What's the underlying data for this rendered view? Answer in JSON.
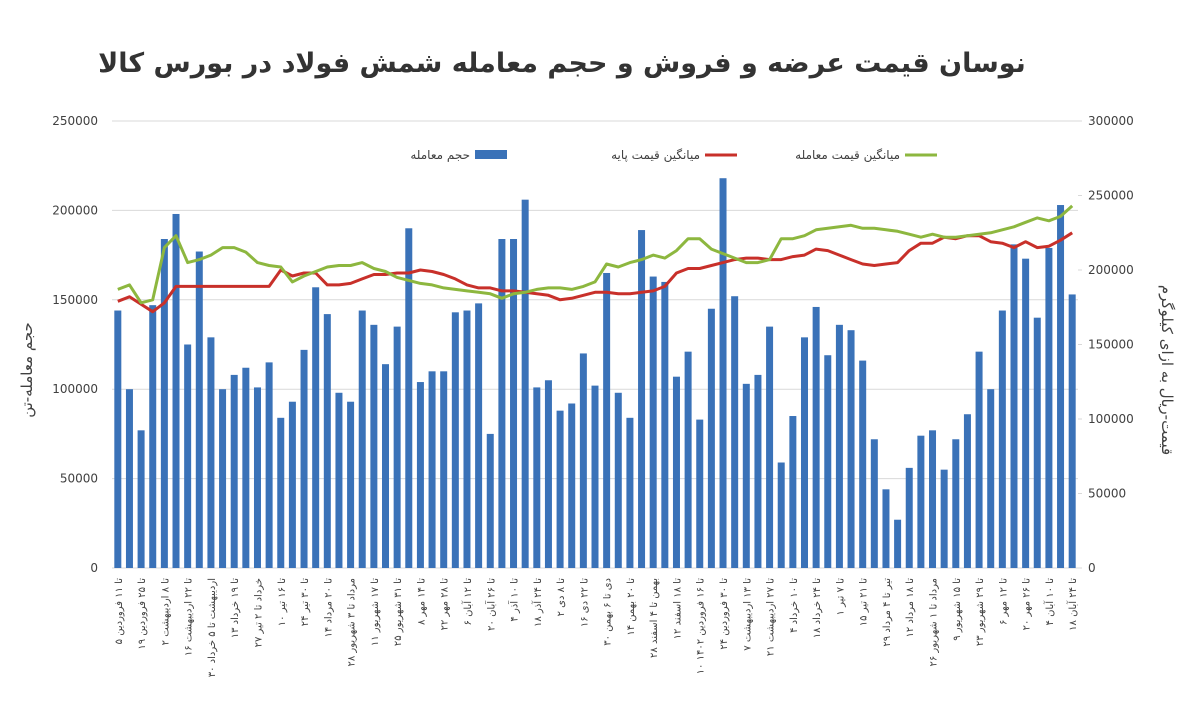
{
  "chart_data": {
    "type": "bar_line",
    "title": "نوسان قیمت عرضه و فروش و حجم معامله شمش فولاد در بورس کالا",
    "y_label": "حجم معامله-تن",
    "y2_label": "قیمت-ریال به ازای کیلوگرم",
    "categories": [
      "۵ تا ۱۱ فروردین",
      null,
      "۱۹ تا ۲۵ فروردین",
      null,
      "۲ تا ۸ اردیبهشت",
      null,
      "۱۶ تا ۲۲ اردیبهشت",
      null,
      "۳۰ اردیبهشت تا ۵ خرداد",
      null,
      "۱۳ تا ۱۹ خرداد",
      null,
      "۲۷ خرداد تا ۲ تیر",
      null,
      "۱۰ تا ۱۶ تیر",
      null,
      "۲۴ تا ۳۰ تیر",
      null,
      "۱۴ تا ۲۰ مرداد",
      null,
      "۲۸ مرداد تا ۳ شهریور",
      null,
      "۱۱ تا ۱۷ شهریور",
      null,
      "۲۵ تا ۳۱ شهریور",
      null,
      "۸ تا ۱۴ مهر",
      null,
      "۲۲ تا ۲۸ مهر",
      null,
      "۶ تا ۱۲ آبان",
      null,
      "۲۰ تا ۲۶ آبان",
      null,
      "۴ تا ۱۰ آذر",
      null,
      "۱۸ تا ۲۴ آذر",
      null,
      "۲ تا ۸ دی",
      null,
      "۱۶ تا ۲۲ دی",
      null,
      "۳۰ دی تا ۶ بهمن",
      null,
      "۱۴ تا ۲۰ بهمن",
      null,
      "۲۸ بهمن تا ۴ اسفند",
      null,
      "۱۲ تا ۱۸ اسفند",
      null,
      "۱۰ تا ۱۶ فروردین ۱۴۰۲",
      null,
      "۲۴ تا ۳۰ فروردین",
      null,
      "۷ تا ۱۳ اردیبهشت",
      null,
      "۲۱ تا ۲۷ اردیبهشت",
      null,
      "۴ تا ۱۰ خرداد",
      null,
      "۱۸ تا ۲۴ خرداد",
      null,
      "۱ تا ۷ تیر",
      null,
      "۱۵ تا ۲۱ تیر",
      null,
      "۲۹ تیر تا ۴ مرداد",
      null,
      "۱۲ تا ۱۸ مرداد",
      null,
      "۲۶ مرداد تا ۱ شهریور",
      null,
      "۹ تا ۱۵ شهریور",
      null,
      "۲۳ تا ۲۹ شهریور",
      null,
      "۶ تا ۱۲ مهر",
      null,
      "۲۰ تا ۲۶ مهر",
      null,
      "۴ تا ۱۰ آبان",
      null,
      "۱۸ تا ۲۴ آبان"
    ],
    "series": [
      {
        "name": "حجم معامله",
        "type": "bar",
        "color": "#3a72b8",
        "values": [
          144000,
          100000,
          77000,
          147000,
          184000,
          198000,
          125000,
          177000,
          129000,
          100000,
          108000,
          112000,
          101000,
          115000,
          84000,
          93000,
          122000,
          157000,
          142000,
          98000,
          93000,
          144000,
          136000,
          114000,
          135000,
          190000,
          104000,
          110000,
          110000,
          143000,
          144000,
          148000,
          75000,
          184000,
          184000,
          206000,
          101000,
          105000,
          88000,
          92000,
          120000,
          102000,
          165000,
          98000,
          84000,
          189000,
          163000,
          160000,
          107000,
          121000,
          83000,
          145000,
          218000,
          152000,
          103000,
          108000,
          135000,
          59000,
          85000,
          129000,
          146000,
          119000,
          136000,
          133000,
          116000,
          72000,
          44000,
          27000,
          56000,
          74000,
          77000,
          55000,
          72000,
          86000,
          121000,
          100000,
          144000,
          181000,
          173000,
          140000,
          179000,
          203000,
          153000
        ]
      },
      {
        "name": "میانگین قیمت پایه",
        "type": "line",
        "axis": "y2",
        "color": "#c8302a",
        "values": [
          179000,
          182000,
          177000,
          172000,
          178000,
          189000,
          189000,
          189000,
          189000,
          189000,
          189000,
          189000,
          189000,
          189000,
          200000,
          196000,
          198000,
          198000,
          190000,
          190000,
          191000,
          194000,
          197000,
          197000,
          198000,
          198000,
          200000,
          199000,
          197000,
          194000,
          190000,
          188000,
          188000,
          186000,
          186000,
          185000,
          184000,
          183000,
          180000,
          181000,
          183000,
          185000,
          185000,
          184000,
          184000,
          185000,
          186000,
          189000,
          198000,
          201000,
          201000,
          203000,
          205000,
          207000,
          208000,
          208000,
          207000,
          207000,
          209000,
          210000,
          214000,
          213000,
          210000,
          207000,
          204000,
          203000,
          204000,
          205000,
          213000,
          218000,
          218000,
          222000,
          221000,
          223000,
          223000,
          219000,
          218000,
          215000,
          219000,
          215000,
          216000,
          220000,
          225000
        ]
      },
      {
        "name": "میانگین قیمت معامله",
        "type": "line",
        "axis": "y2",
        "color": "#8db73f",
        "values": [
          187000,
          190000,
          178000,
          180000,
          215000,
          223000,
          205000,
          207000,
          210000,
          215000,
          215000,
          212000,
          205000,
          203000,
          202000,
          192000,
          196000,
          199000,
          202000,
          203000,
          203000,
          205000,
          201000,
          199000,
          195000,
          193000,
          191000,
          190000,
          188000,
          187000,
          186000,
          185000,
          184000,
          181000,
          184000,
          185000,
          187000,
          188000,
          188000,
          187000,
          189000,
          192000,
          204000,
          202000,
          205000,
          207000,
          210000,
          208000,
          213000,
          221000,
          221000,
          214000,
          211000,
          208000,
          205000,
          205000,
          207000,
          221000,
          221000,
          223000,
          227000,
          228000,
          229000,
          230000,
          228000,
          228000,
          227000,
          226000,
          224000,
          222000,
          224000,
          222000,
          222000,
          223000,
          224000,
          225000,
          227000,
          229000,
          232000,
          235000,
          233000,
          236000,
          243000
        ]
      }
    ],
    "ylim": [
      0,
      250000
    ],
    "yticks": [
      0,
      50000,
      100000,
      150000,
      200000,
      250000
    ],
    "y2lim": [
      0,
      300000
    ],
    "y2ticks": [
      0,
      50000,
      100000,
      150000,
      200000,
      250000,
      300000
    ],
    "grid": true
  }
}
